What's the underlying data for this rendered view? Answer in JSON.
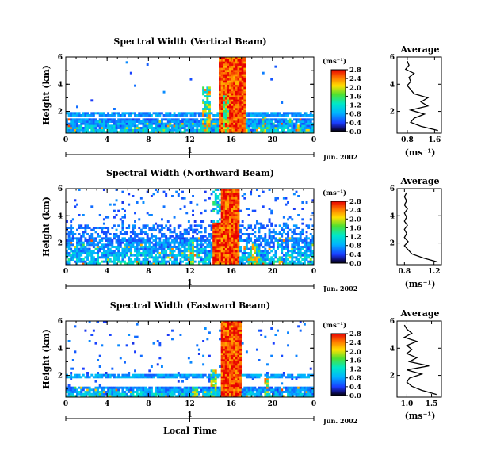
{
  "chart_data": [
    {
      "type": "heatmap",
      "title": "Spectral Width (Vertical Beam)",
      "ylabel": "Height (km)",
      "x_ticks": [
        "0",
        "4",
        "8",
        "12",
        "16",
        "20",
        "0"
      ],
      "xlim": [
        0,
        24
      ],
      "y_ticks": [
        "2",
        "4",
        "6"
      ],
      "ylim": [
        0.4,
        6
      ],
      "date_tick": "1",
      "date_label": "Jun. 2002",
      "colorbar": {
        "unit": "(ms⁻¹)",
        "ticks": [
          "0.0",
          "0.4",
          "0.8",
          "1.2",
          "1.6",
          "2.0",
          "2.4",
          "2.8"
        ],
        "range": [
          0,
          2.8
        ]
      },
      "profile": {
        "title": "Average",
        "xlabel": "(ms⁻¹)",
        "x_ticks": [
          "0.8",
          "1.6"
        ],
        "xlim": [
          0.5,
          1.8
        ],
        "y_ticks": [
          "2",
          "4",
          "6"
        ],
        "ylim": [
          0.4,
          6
        ],
        "heights": [
          0.6,
          0.9,
          1.2,
          1.5,
          1.8,
          2.1,
          2.4,
          2.7,
          3.0,
          3.3,
          3.6,
          3.9,
          4.2,
          4.5,
          4.8,
          5.1,
          5.4,
          5.7
        ],
        "values": [
          1.7,
          1.2,
          0.9,
          1.0,
          1.3,
          0.9,
          1.4,
          1.2,
          1.4,
          1.0,
          0.9,
          0.8,
          0.9,
          0.85,
          1.0,
          0.75,
          0.85,
          0.8
        ]
      }
    },
    {
      "type": "heatmap",
      "title": "Spectral Width (Northward Beam)",
      "ylabel": "Height (km)",
      "x_ticks": [
        "0",
        "4",
        "8",
        "12",
        "16",
        "20",
        "0"
      ],
      "xlim": [
        0,
        24
      ],
      "y_ticks": [
        "2",
        "4",
        "6"
      ],
      "ylim": [
        0.4,
        6
      ],
      "date_tick": "1",
      "date_label": "Jun. 2002",
      "colorbar": {
        "unit": "(ms⁻¹)",
        "ticks": [
          "0.0",
          "0.4",
          "0.8",
          "1.2",
          "1.6",
          "2.0",
          "2.4",
          "2.8"
        ],
        "range": [
          0,
          2.8
        ]
      },
      "profile": {
        "title": "Average",
        "xlabel": "(ms⁻¹)",
        "x_ticks": [
          "0.8",
          "1.2"
        ],
        "xlim": [
          0.7,
          1.3
        ],
        "y_ticks": [
          "2",
          "4",
          "6"
        ],
        "ylim": [
          0.4,
          6
        ],
        "heights": [
          0.6,
          0.9,
          1.2,
          1.5,
          1.8,
          2.1,
          2.4,
          2.7,
          3.0,
          3.3,
          3.6,
          3.9,
          4.2,
          4.5,
          4.8,
          5.1,
          5.4,
          5.7
        ],
        "values": [
          1.25,
          1.05,
          0.9,
          0.85,
          0.8,
          0.85,
          0.8,
          0.83,
          0.8,
          0.84,
          0.8,
          0.83,
          0.8,
          0.84,
          0.8,
          0.83,
          0.8,
          0.83
        ]
      }
    },
    {
      "type": "heatmap",
      "title": "Spectral Width (Eastward Beam)",
      "ylabel": "Height (km)",
      "x_ticks": [
        "0",
        "4",
        "8",
        "12",
        "16",
        "20",
        "0"
      ],
      "xlim": [
        0,
        24
      ],
      "y_ticks": [
        "2",
        "4",
        "6"
      ],
      "ylim": [
        0.4,
        6
      ],
      "date_tick": "1",
      "date_label": "Jun. 2002",
      "xlabel": "Local Time",
      "colorbar": {
        "unit": "(ms⁻¹)",
        "ticks": [
          "0.0",
          "0.4",
          "0.8",
          "1.2",
          "1.6",
          "2.0",
          "2.4",
          "2.8"
        ],
        "range": [
          0,
          2.8
        ]
      },
      "profile": {
        "title": "Average",
        "xlabel": "(ms⁻¹)",
        "x_ticks": [
          "1.0",
          "1.5"
        ],
        "xlim": [
          0.8,
          1.7
        ],
        "y_ticks": [
          "2",
          "4",
          "6"
        ],
        "ylim": [
          0.4,
          6
        ],
        "heights": [
          0.6,
          0.9,
          1.2,
          1.5,
          1.8,
          2.1,
          2.4,
          2.7,
          3.0,
          3.3,
          3.6,
          3.9,
          4.2,
          4.5,
          4.8,
          5.1,
          5.4,
          5.7
        ],
        "values": [
          1.6,
          1.3,
          1.1,
          1.0,
          1.05,
          1.3,
          1.0,
          1.45,
          1.05,
          1.2,
          1.0,
          1.1,
          1.0,
          1.2,
          0.95,
          1.1,
          1.0,
          0.95
        ]
      }
    }
  ]
}
